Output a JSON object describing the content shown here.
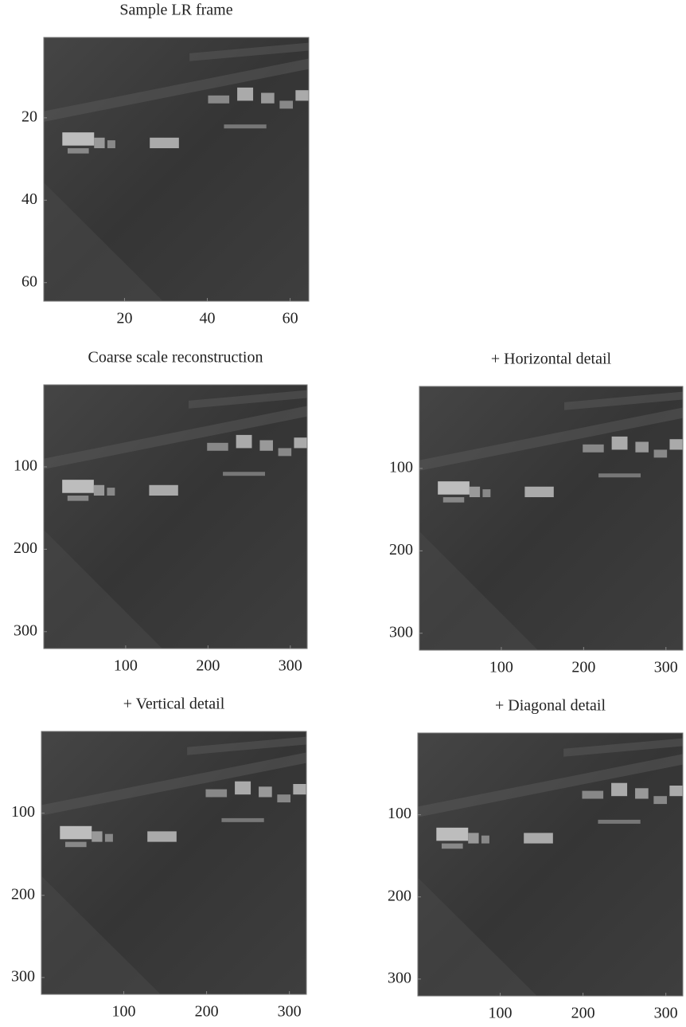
{
  "chart_data": [
    {
      "type": "image",
      "title": "Sample LR frame",
      "xlim": [
        0.5,
        64.5
      ],
      "ylim": [
        0.5,
        64.5
      ],
      "y_inverted": true,
      "xticks": [
        20,
        40,
        60
      ],
      "yticks": [
        20,
        40,
        60
      ]
    },
    {
      "type": "image",
      "title": "Coarse scale reconstruction",
      "xlim": [
        0.5,
        320.5
      ],
      "ylim": [
        0.5,
        320.5
      ],
      "y_inverted": true,
      "xticks": [
        100,
        200,
        300
      ],
      "yticks": [
        100,
        200,
        300
      ]
    },
    {
      "type": "image",
      "title": "+ Horizontal detail",
      "xlim": [
        0.5,
        320.5
      ],
      "ylim": [
        0.5,
        320.5
      ],
      "y_inverted": true,
      "xticks": [
        100,
        200,
        300
      ],
      "yticks": [
        100,
        200,
        300
      ]
    },
    {
      "type": "image",
      "title": "+ Vertical detail",
      "xlim": [
        0.5,
        320.5
      ],
      "ylim": [
        0.5,
        320.5
      ],
      "y_inverted": true,
      "xticks": [
        100,
        200,
        300
      ],
      "yticks": [
        100,
        200,
        300
      ]
    },
    {
      "type": "image",
      "title": "+ Diagonal detail",
      "xlim": [
        0.5,
        320.5
      ],
      "ylim": [
        0.5,
        320.5
      ],
      "y_inverted": true,
      "xticks": [
        100,
        200,
        300
      ],
      "yticks": [
        100,
        200,
        300
      ]
    }
  ]
}
